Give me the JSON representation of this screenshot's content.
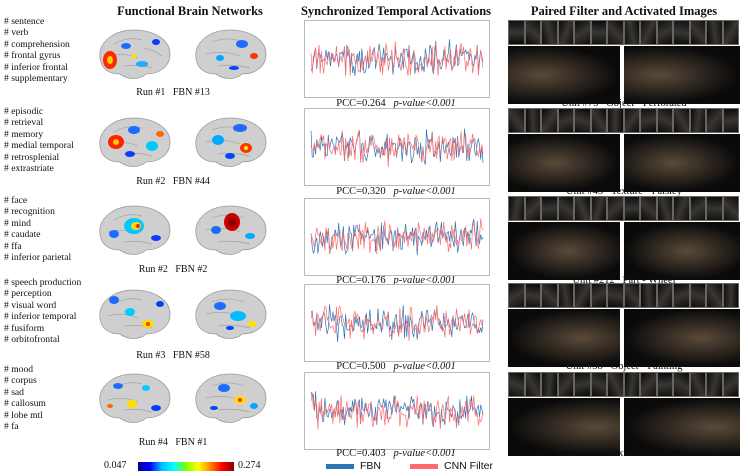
{
  "headers": {
    "brain": "Functional Brain Networks",
    "temporal": "Synchronized Temporal Activations",
    "filter": "Paired Filter and Activated Images"
  },
  "rows": [
    {
      "keywords": [
        "# sentence",
        "# verb",
        "# comprehension",
        "# frontal gyrus",
        "# inferior frontal",
        "# supplementary"
      ],
      "run": "Run #1",
      "fbn": "FBN #13",
      "pcc": "PCC=0.264",
      "pvalue": "p-value<0.001",
      "unit": "Unit #75",
      "category": "Object - Perforated"
    },
    {
      "keywords": [
        "# episodic",
        "# retrieval",
        "# memory",
        "# medial temporal",
        "# retrosplenial",
        "# extrastriate"
      ],
      "run": "Run #2",
      "fbn": "FBN #44",
      "pcc": "PCC=0.320",
      "pvalue": "p-value<0.001",
      "unit": "Unit #43",
      "category": "Texture - Paisley"
    },
    {
      "keywords": [
        "# face",
        "# recognition",
        "# mind",
        "# caudate",
        "# ffa",
        "# inferior parietal"
      ],
      "run": "Run #2",
      "fbn": "FBN #2",
      "pcc": "PCC=0.176",
      "pvalue": "p-value<0.001",
      "unit": "Unit #212",
      "category": "Part - Wheel"
    },
    {
      "keywords": [
        "# speech production",
        "# perception",
        "# visual word",
        "# inferior temporal",
        "# fusiform",
        "# orbitofrontal"
      ],
      "run": "Run #3",
      "fbn": "FBN #58",
      "pcc": "PCC=0.500",
      "pvalue": "p-value<0.001",
      "unit": "Unit #58",
      "category": "Object - Painting"
    },
    {
      "keywords": [
        "# mood",
        "# corpus",
        "# sad",
        "# callosum",
        "# lobe mtl",
        "# fa"
      ],
      "run": "Run #4",
      "fbn": "FBN #1",
      "pcc": "PCC=0.403",
      "pvalue": "p-value<0.001",
      "unit": "Unit #222",
      "category": "Texture - Interlaced"
    }
  ],
  "colorbar": {
    "min": "0.047",
    "max": "0.274"
  },
  "legend": {
    "fbn": "FBN",
    "fbn_color": "#2e75b6",
    "cnn": "CNN Filter",
    "cnn_color": "#ff6b6b"
  }
}
